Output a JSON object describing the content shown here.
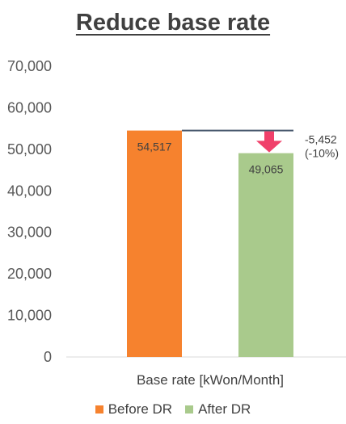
{
  "chart_data": {
    "type": "bar",
    "title": "Reduce base rate",
    "categories": [
      "Base rate [kWon/Month]"
    ],
    "series": [
      {
        "name": "Before DR",
        "values": [
          54517
        ],
        "value_labels": [
          "54,517"
        ],
        "color": "#F6822E"
      },
      {
        "name": "After DR",
        "values": [
          49065
        ],
        "value_labels": [
          "49,065"
        ],
        "color": "#A9CA8C"
      }
    ],
    "ylim": [
      0,
      70000
    ],
    "y_ticks": [
      "0",
      "10,000",
      "20,000",
      "30,000",
      "40,000",
      "50,000",
      "60,000",
      "70,000"
    ],
    "grid": false,
    "legend": "bottom",
    "annotation": {
      "line1": "-5,452",
      "line2": "(-10%)",
      "arrow_color": "#F0406A"
    }
  }
}
